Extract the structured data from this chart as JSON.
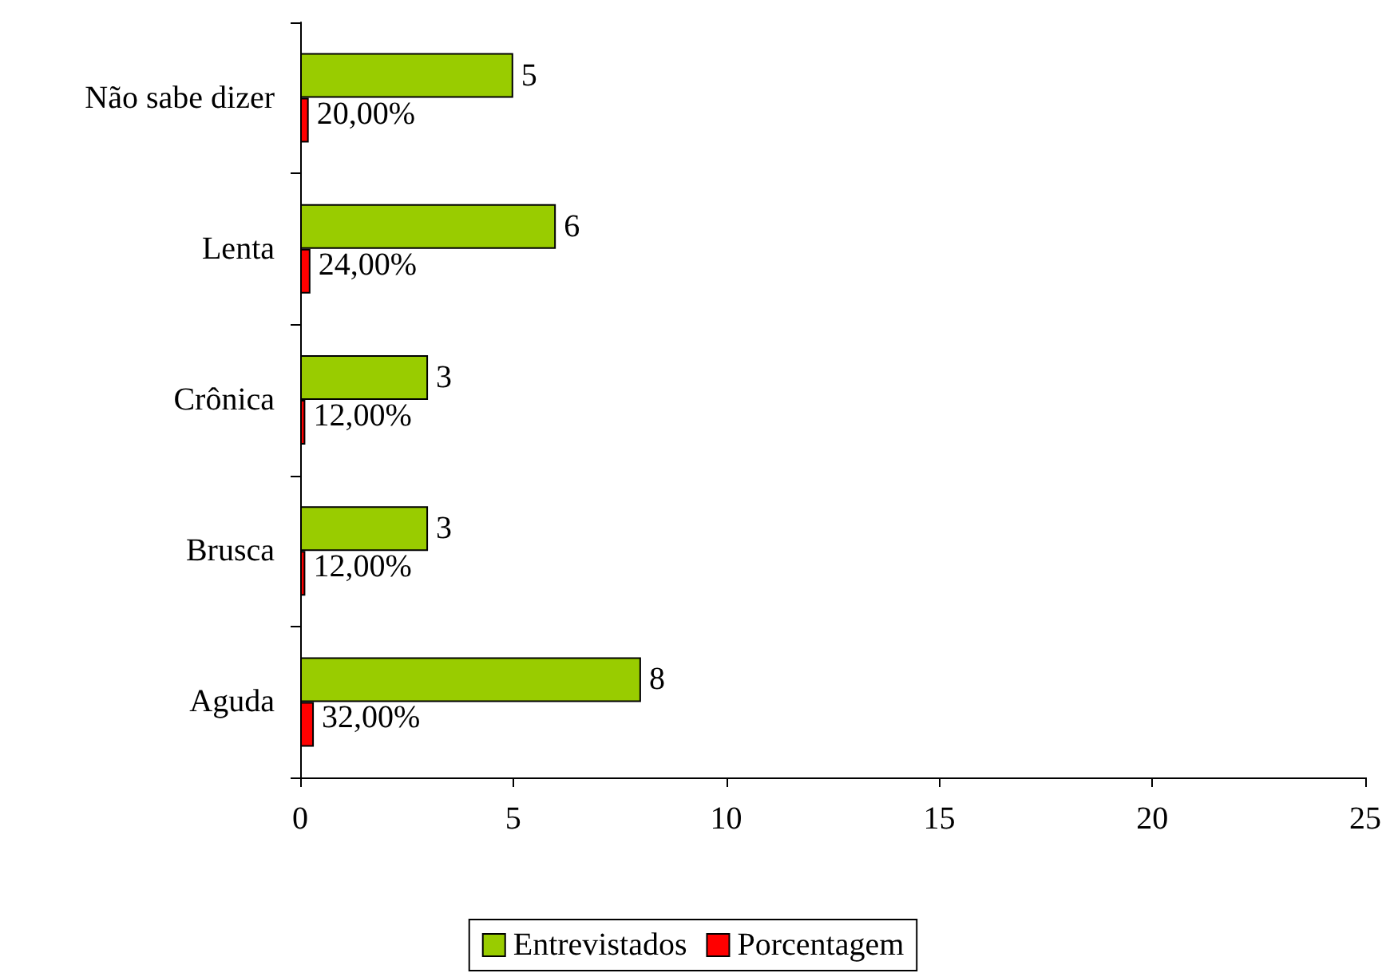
{
  "chart_data": {
    "type": "bar",
    "orientation": "horizontal",
    "categories": [
      "Não sabe dizer",
      "Lenta",
      "Crônica",
      "Brusca",
      "Aguda"
    ],
    "series": [
      {
        "name": "Entrevistados",
        "color": "#99cc00",
        "values": [
          5,
          6,
          3,
          3,
          8
        ],
        "value_labels": [
          "5",
          "6",
          "3",
          "3",
          "8"
        ]
      },
      {
        "name": "Porcentagem",
        "color": "#ff0000",
        "values": [
          0.2,
          0.24,
          0.12,
          0.12,
          0.32
        ],
        "value_labels": [
          "20,00%",
          "24,00%",
          "12,00%",
          "12,00%",
          "32,00%"
        ]
      }
    ],
    "xlim": [
      0,
      25
    ],
    "xticks": [
      0,
      5,
      10,
      15,
      20,
      25
    ],
    "grid": false,
    "legend": "bottom"
  }
}
